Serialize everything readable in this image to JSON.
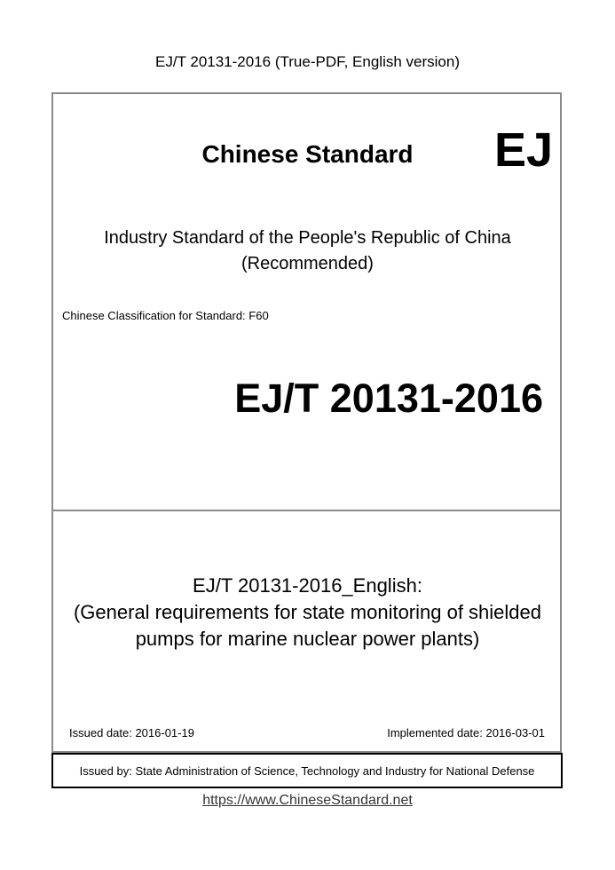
{
  "header": {
    "title": "EJ/T 20131-2016 (True-PDF, English version)"
  },
  "cover": {
    "heading": "Chinese Standard",
    "badge": "EJ",
    "industry_line1": "Industry Standard of the People's Republic of China",
    "industry_line2": "(Recommended)",
    "classification": "Chinese Classification for Standard: F60",
    "standard_code": "EJ/T 20131-2016",
    "english_title_line1": "EJ/T 20131-2016_English:",
    "english_title_line2": "(General requirements for state monitoring of shielded",
    "english_title_line3": "pumps for marine nuclear power plants)",
    "issued_date": "Issued date: 2016-01-19",
    "implemented_date": "Implemented date: 2016-03-01",
    "issued_by": "Issued by: State Administration of Science, Technology and Industry for National Defense"
  },
  "footer": {
    "url": "https://www.ChineseStandard.net"
  }
}
